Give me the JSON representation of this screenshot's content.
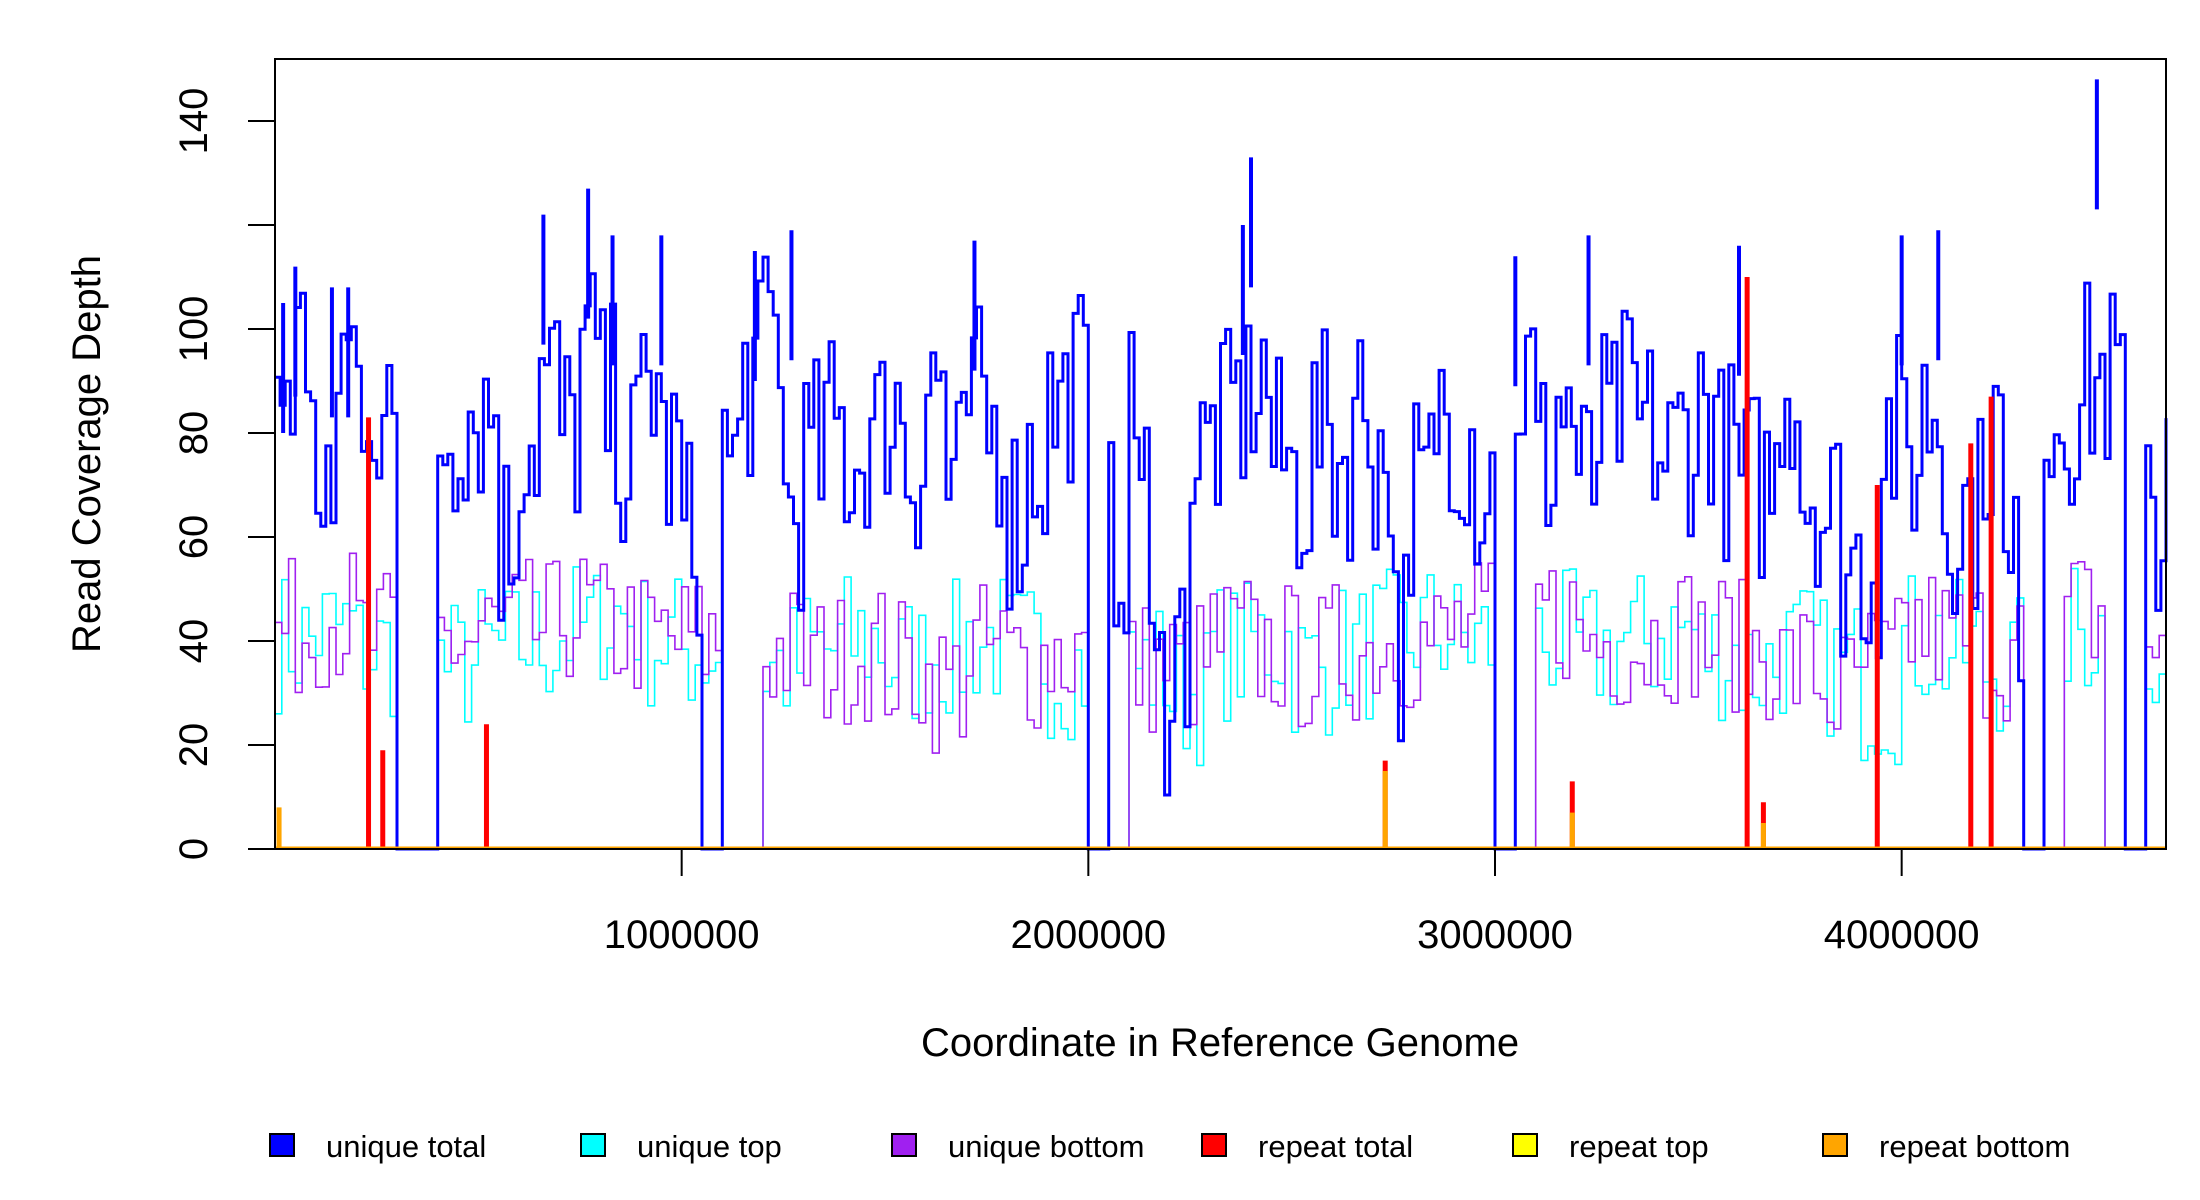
{
  "chart_data": {
    "type": "line",
    "title": "",
    "xlabel": "Coordinate in Reference Genome",
    "ylabel": "Read Coverage Depth",
    "xlim": [
      0,
      4650000
    ],
    "ylim": [
      0,
      152
    ],
    "x_ticks": [
      1000000,
      2000000,
      3000000,
      4000000
    ],
    "x_tick_labels": [
      "1000000",
      "2000000",
      "3000000",
      "4000000"
    ],
    "y_ticks": [
      0,
      20,
      40,
      60,
      80,
      100,
      120,
      140
    ],
    "y_tick_labels": [
      "0",
      "20",
      "40",
      "60",
      "80",
      "100",
      "",
      "140"
    ],
    "grid": false,
    "legend_position": "bottom",
    "bin_size": 50000,
    "series": [
      {
        "name": "unique total",
        "color": "#0000FF",
        "bin_size": 50000,
        "values": [
          90,
          96,
          60,
          95,
          90,
          78,
          0,
          0,
          80,
          85,
          85,
          60,
          80,
          90,
          80,
          95,
          85,
          75,
          90,
          75,
          60,
          0,
          75,
          90,
          100,
          65,
          75,
          80,
          75,
          80,
          85,
          75,
          90,
          70,
          85,
          80,
          65,
          75,
          85,
          90,
          0,
          60,
          80,
          30,
          40,
          75,
          80,
          85,
          90,
          75,
          70,
          80,
          75,
          85,
          75,
          40,
          70,
          85,
          80,
          70,
          0,
          90,
          75,
          85,
          70,
          80,
          85,
          80,
          75,
          80,
          85,
          75,
          70,
          70,
          90,
          70,
          65,
          55,
          55,
          80,
          75,
          85,
          65,
          65,
          80,
          50,
          0,
          85,
          85,
          90,
          90,
          0,
          60,
          85
        ]
      },
      {
        "name": "unique top",
        "color": "#00FFFF",
        "bin_size": 100000,
        "values": [
          40,
          42,
          38,
          0,
          35,
          38,
          40,
          42,
          45,
          40,
          38,
          0,
          35,
          38,
          40,
          36,
          38,
          40,
          38,
          35,
          0,
          35,
          30,
          38,
          40,
          35,
          38,
          40,
          42,
          40,
          0,
          40,
          38,
          40,
          42,
          38,
          35,
          38,
          35,
          30,
          40,
          38,
          35,
          0,
          42,
          0,
          40
        ]
      },
      {
        "name": "unique bottom",
        "color": "#A020F0",
        "bin_size": 100000,
        "values": [
          42,
          45,
          40,
          0,
          40,
          42,
          42,
          45,
          42,
          40,
          40,
          0,
          38,
          36,
          38,
          35,
          32,
          38,
          36,
          38,
          0,
          35,
          35,
          40,
          38,
          36,
          38,
          40,
          40,
          42,
          0,
          45,
          40,
          40,
          42,
          40,
          38,
          35,
          30,
          35,
          42,
          40,
          38,
          0,
          45,
          0,
          40
        ]
      },
      {
        "name": "repeat total",
        "color": "#FF0000",
        "spikes": [
          [
            230000,
            83
          ],
          [
            265000,
            19
          ],
          [
            520000,
            24
          ],
          [
            2730000,
            17
          ],
          [
            3190000,
            13
          ],
          [
            3620000,
            110
          ],
          [
            3660000,
            9
          ],
          [
            3940000,
            70
          ],
          [
            4170000,
            78
          ],
          [
            4220000,
            87
          ]
        ]
      },
      {
        "name": "repeat top",
        "color": "#FFFF00",
        "spikes": []
      },
      {
        "name": "repeat bottom",
        "color": "#FFA500",
        "spikes": [
          [
            10000,
            8
          ],
          [
            2730000,
            15
          ],
          [
            3190000,
            7
          ],
          [
            3660000,
            5
          ]
        ]
      }
    ],
    "peaks_unique_total": [
      [
        20000,
        105
      ],
      [
        50000,
        112
      ],
      [
        140000,
        108
      ],
      [
        180000,
        108
      ],
      [
        660000,
        122
      ],
      [
        770000,
        127
      ],
      [
        830000,
        118
      ],
      [
        950000,
        118
      ],
      [
        1180000,
        115
      ],
      [
        1270000,
        119
      ],
      [
        1720000,
        117
      ],
      [
        2400000,
        133
      ],
      [
        2380000,
        120
      ],
      [
        3050000,
        114
      ],
      [
        3230000,
        118
      ],
      [
        3600000,
        116
      ],
      [
        4000000,
        118
      ],
      [
        4090000,
        119
      ],
      [
        4480000,
        148
      ]
    ]
  }
}
